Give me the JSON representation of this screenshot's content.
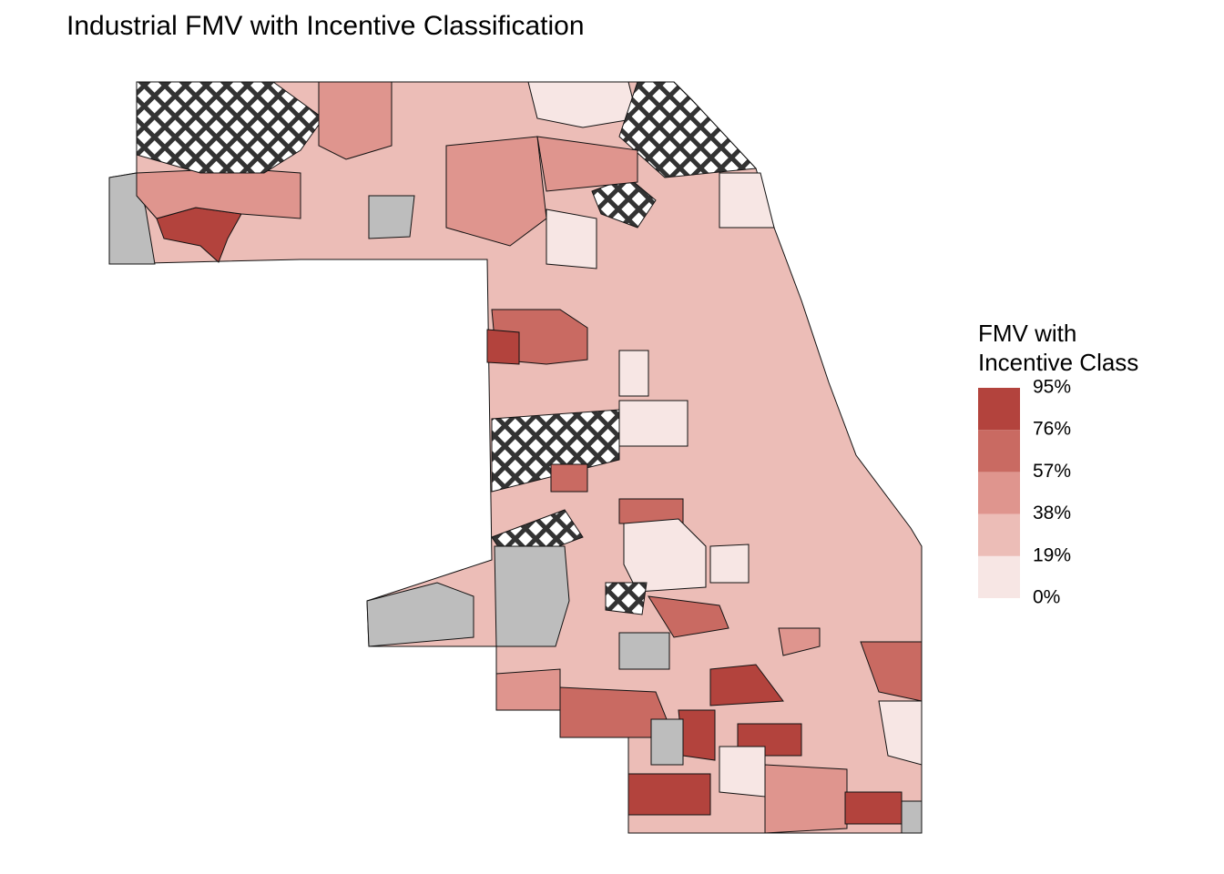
{
  "title": "Industrial FMV with Incentive Classification",
  "legend": {
    "title": [
      "FMV with",
      "Incentive Class"
    ],
    "ticks": [
      {
        "value": 0,
        "label": "0%"
      },
      {
        "value": 19,
        "label": "19%"
      },
      {
        "value": 38,
        "label": "38%"
      },
      {
        "value": 57,
        "label": "57%"
      },
      {
        "value": 76,
        "label": "76%"
      },
      {
        "value": 95,
        "label": "95%"
      }
    ],
    "colors": [
      "#f7e6e4",
      "#ecbdb7",
      "#df958e",
      "#c96a62",
      "#b3433d"
    ]
  }
}
